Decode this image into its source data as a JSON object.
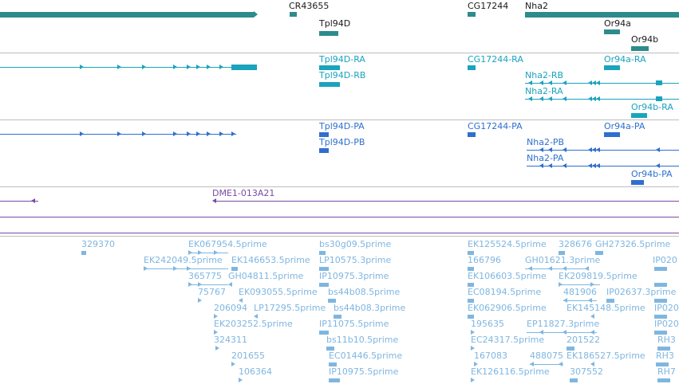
{
  "colors": {
    "gene": "#2e8b8b",
    "rna": "#1aa3bd",
    "protein": "#2f6fce",
    "clone": "#7a4aa3",
    "est": "#7fb6e0",
    "separator": "#bdbdbd"
  },
  "genes": {
    "cr43655": "CR43655",
    "cg17244": "CG17244",
    "nha2": "Nha2",
    "tpl94d": "Tpl94D",
    "or94a": "Or94a",
    "or94b": "Or94b"
  },
  "transcripts": {
    "tpl94d_ra": "Tpl94D-RA",
    "tpl94d_rb": "Tpl94D-RB",
    "cg17244_ra": "CG17244-RA",
    "or94a_ra": "Or94a-RA",
    "nha2_rb": "Nha2-RB",
    "nha2_ra": "Nha2-RA",
    "or94b_ra": "Or94b-RA"
  },
  "proteins": {
    "tpl94d_pa": "Tpl94D-PA",
    "tpl94d_pb": "Tpl94D-PB",
    "cg17244_pa": "CG17244-PA",
    "or94a_pa": "Or94a-PA",
    "nha2_pb": "Nha2-PB",
    "nha2_pa": "Nha2-PA",
    "or94b_pa": "Or94b-PA"
  },
  "clones": {
    "dme1": "DME1-013A21"
  },
  "ests": {
    "e329370": "329370",
    "ek067954": "EK067954.5prime",
    "bs30g09": "bs30g09.5prime",
    "ek125524": "EK125524.5prime",
    "e328676": "328676",
    "gh27326": "GH27326.5prime",
    "ek242049": "EK242049.5prime",
    "ek146653": "EK146653.5prime",
    "lp10575": "LP10575.3prime",
    "e166796": "166796",
    "gh01621": "GH01621.3prime",
    "ip020a": "IP020",
    "e365775": "365775",
    "gh04811": "GH04811.5prime",
    "ip10975_3": "IP10975.3prime",
    "ek106603": "EK106603.5prime",
    "ek209819": "EK209819.5prime",
    "e75767": "75767",
    "ek093055": "EK093055.5prime",
    "bs44b08_5": "bs44b08.5prime",
    "ec08194": "EC08194.5prime",
    "e481906": "481906",
    "ip02637": "IP02637.3prime",
    "e206094": "206094",
    "lp17295": "LP17295.5prime",
    "bs44b08_3": "bs44b08.3prime",
    "ek062906": "EK062906.5prime",
    "ek145148": "EK145148.5prime",
    "ip020b": "IP020",
    "ek203252": "EK203252.5prime",
    "ip11075": "IP11075.5prime",
    "e195635": "195635",
    "ep11827": "EP11827.3prime",
    "ip020c": "IP020",
    "e324311": "324311",
    "bs11b10": "bs11b10.5prime",
    "ec24317": "EC24317.5prime",
    "e201522": "201522",
    "rh3": "RH3",
    "e201655": "201655",
    "ec01446": "EC01446.5prime",
    "e167083": "167083",
    "e488075": "488075",
    "ek186527": "EK186527.5prime",
    "rh3b": "RH3",
    "e106364": "106364",
    "ip10975_5": "IP10975.5prime",
    "ek126116": "EK126116.5prime",
    "e307552": "307552",
    "rh7": "RH7"
  }
}
